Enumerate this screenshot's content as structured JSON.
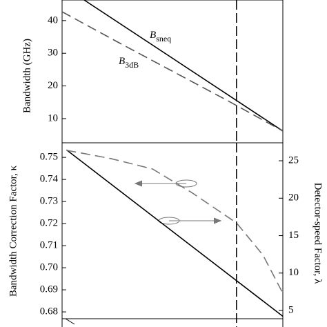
{
  "chart_data": [
    {
      "type": "line",
      "ylabel": "Bandwidth (GHz)",
      "xlim": [
        0,
        1
      ],
      "ylim": [
        2.6,
        46.3
      ],
      "yticks": [
        10,
        20,
        30,
        40
      ],
      "vline": 0.79,
      "annotations": [
        {
          "text": "B",
          "sub": "sneq"
        },
        {
          "text": "B",
          "sub": "3dB"
        }
      ],
      "series": [
        {
          "color": "#000000",
          "dash": false,
          "x": [
            0.1,
            1
          ],
          "values": [
            46.3,
            6.2
          ]
        },
        {
          "color": "#555555",
          "dash": true,
          "x": [
            0,
            0.25,
            0.5,
            0.75,
            1
          ],
          "values": [
            42.7,
            33.5,
            24.5,
            15.5,
            6.2
          ]
        }
      ]
    },
    {
      "type": "line",
      "ylabel": "Bandwidth Correction Factor, κ",
      "y2label": "Detector-speed Factor, λ",
      "xlim": [
        0,
        1
      ],
      "ylim": [
        0.6769,
        0.7566
      ],
      "yticks": [
        {
          "value": 0.68,
          "label": "0.68"
        },
        0.69,
        {
          "value": 0.7,
          "label": "0.70"
        },
        0.71,
        0.72,
        0.73,
        0.74,
        0.75
      ],
      "y2lim": [
        3.9,
        27.4
      ],
      "y2ticks": [
        5,
        10,
        15,
        20,
        25
      ],
      "vline": 0.79,
      "series": [
        {
          "color": "#000000",
          "dash": false,
          "x": [
            0.02,
            1
          ],
          "values": [
            0.7534,
            0.678
          ]
        },
        {
          "color": "#777777",
          "dash": true,
          "axis": "y2",
          "x": [
            0.02,
            0.22,
            0.41,
            0.59,
            0.79,
            0.91,
            1
          ],
          "values": [
            26.4,
            25.3,
            23.9,
            20.7,
            16.7,
            12.4,
            7.3
          ]
        }
      ]
    }
  ]
}
